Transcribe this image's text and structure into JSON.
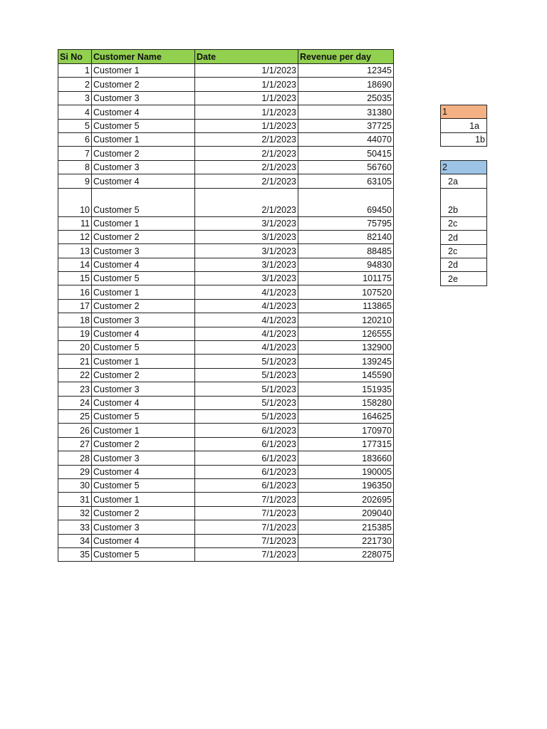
{
  "table": {
    "headers": [
      "Si No",
      "Customer Name",
      "Date",
      "Revenue per day"
    ],
    "header_color": "#92d050",
    "rows": [
      [
        "1",
        "Customer 1",
        "1/1/2023",
        "12345"
      ],
      [
        "2",
        "Customer 2",
        "1/1/2023",
        "18690"
      ],
      [
        "3",
        "Customer 3",
        "1/1/2023",
        "25035"
      ],
      [
        "4",
        "Customer 4",
        "1/1/2023",
        "31380"
      ],
      [
        "5",
        "Customer 5",
        "1/1/2023",
        "37725"
      ],
      [
        "6",
        "Customer 1",
        "2/1/2023",
        "44070"
      ],
      [
        "7",
        "Customer 2",
        "2/1/2023",
        "50415"
      ],
      [
        "8",
        "Customer 3",
        "2/1/2023",
        "56760"
      ],
      [
        "9",
        "Customer 4",
        "2/1/2023",
        "63105"
      ],
      [
        "10",
        "Customer 5",
        "2/1/2023",
        "69450"
      ],
      [
        "11",
        "Customer 1",
        "3/1/2023",
        "75795"
      ],
      [
        "12",
        "Customer 2",
        "3/1/2023",
        "82140"
      ],
      [
        "13",
        "Customer 3",
        "3/1/2023",
        "88485"
      ],
      [
        "14",
        "Customer 4",
        "3/1/2023",
        "94830"
      ],
      [
        "15",
        "Customer 5",
        "3/1/2023",
        "101175"
      ],
      [
        "16",
        "Customer 1",
        "4/1/2023",
        "107520"
      ],
      [
        "17",
        "Customer 2",
        "4/1/2023",
        "113865"
      ],
      [
        "18",
        "Customer 3",
        "4/1/2023",
        "120210"
      ],
      [
        "19",
        "Customer 4",
        "4/1/2023",
        "126555"
      ],
      [
        "20",
        "Customer 5",
        "4/1/2023",
        "132900"
      ],
      [
        "21",
        "Customer 1",
        "5/1/2023",
        "139245"
      ],
      [
        "22",
        "Customer 2",
        "5/1/2023",
        "145590"
      ],
      [
        "23",
        "Customer 3",
        "5/1/2023",
        "151935"
      ],
      [
        "24",
        "Customer 4",
        "5/1/2023",
        "158280"
      ],
      [
        "25",
        "Customer 5",
        "5/1/2023",
        "164625"
      ],
      [
        "26",
        "Customer 1",
        "6/1/2023",
        "170970"
      ],
      [
        "27",
        "Customer 2",
        "6/1/2023",
        "177315"
      ],
      [
        "28",
        "Customer 3",
        "6/1/2023",
        "183660"
      ],
      [
        "29",
        "Customer 4",
        "6/1/2023",
        "190005"
      ],
      [
        "30",
        "Customer 5",
        "6/1/2023",
        "196350"
      ],
      [
        "31",
        "Customer 1",
        "7/1/2023",
        "202695"
      ],
      [
        "32",
        "Customer 2",
        "7/1/2023",
        "209040"
      ],
      [
        "33",
        "Customer 3",
        "7/1/2023",
        "215385"
      ],
      [
        "34",
        "Customer 4",
        "7/1/2023",
        "221730"
      ],
      [
        "35",
        "Customer 5",
        "7/1/2023",
        "228075"
      ]
    ]
  },
  "box1": {
    "header": "1",
    "header_color": "#f4b183",
    "items": [
      "1a",
      "1b"
    ]
  },
  "box2": {
    "header": "2",
    "header_color": "#9dc3e6",
    "items": [
      "2a",
      "2b",
      "2c",
      "2d",
      "2c",
      "2d",
      "2e"
    ]
  }
}
